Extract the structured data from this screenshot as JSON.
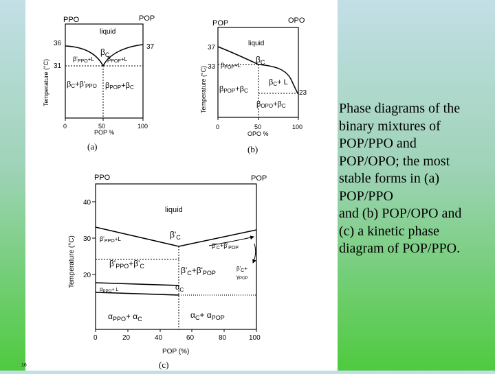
{
  "caption": {
    "lines": [
      "Phase diagrams of the",
      "binary mixtures of",
      "POP/PPO and",
      "POP/OPO; the most",
      "stable forms in (a)",
      "POP/PPO",
      "and (b) POP/OPO and",
      "(c) a kinetic phase",
      "diagram of POP/PPO."
    ]
  },
  "slide_number": "16",
  "diagrams": {
    "a": {
      "left_comp": "PPO",
      "right_comp": "POP",
      "region_liquid": "liquid",
      "t_left": "36",
      "t_right": "37",
      "t_eutectic": "31",
      "ylabel": "Temperature (°C)",
      "region_beta_c": "β",
      "region_beta_c_sub": "C",
      "region_beta_ppo_l": "β'",
      "region_beta_ppo_l_sub": "PPO",
      "region_beta_ppo_l_tail": "+L",
      "region_beta_pop_l": "β",
      "region_beta_pop_l_sub": "POP",
      "region_beta_pop_l_tail": "+L",
      "region_bc_bppo_1": "β",
      "region_bc_bppo_s1": "C",
      "region_bc_bppo_2": "+β'",
      "region_bc_bppo_s2": "PPO",
      "region_bpop_bc_1": "β",
      "region_bpop_bc_s1": "POP",
      "region_bpop_bc_2": "+β",
      "region_bpop_bc_s2": "C",
      "x_ticks": [
        "0",
        "50",
        "100"
      ],
      "xlabel": "POP %",
      "panel_label": "(a)"
    },
    "b": {
      "left_comp": "POP",
      "right_comp": "OPO",
      "region_liquid": "liquid",
      "t_left": "37",
      "t_eutectic": "33",
      "t_right": "23",
      "ylabel": "Temperature (°C)",
      "region_bpop_l": "β",
      "region_bpop_l_sub": "POP",
      "region_bpop_l_tail": "+L",
      "region_bc": "β",
      "region_bc_sub": "C",
      "region_bc_l": "β",
      "region_bc_l_sub": "C",
      "region_bc_l_tail": "+ L",
      "region_bpop_bc_1": "β",
      "region_bpop_bc_s1": "POP",
      "region_bpop_bc_2": "+β",
      "region_bpop_bc_s2": "C",
      "region_bopo_bc_1": "β",
      "region_bopo_bc_s1": "OPO",
      "region_bopo_bc_2": "+β",
      "region_bopo_bc_s2": "C",
      "x_ticks": [
        "0",
        "50",
        "100"
      ],
      "xlabel": "OPO %",
      "panel_label": "(b)"
    },
    "c": {
      "left_comp": "PPO",
      "right_comp": "POP",
      "region_liquid": "liquid",
      "y_ticks": [
        "40",
        "30",
        "20"
      ],
      "ylabel": "Temperature (°C)",
      "region_bppo_l": "β'",
      "region_bppo_l_sub": "PPO",
      "region_bppo_l_tail": "+L",
      "region_bc": "β'",
      "region_bc_sub": "C",
      "region_bc_bpop_1": "β'",
      "region_bc_bpop_s1": "C",
      "region_bc_bpop_2": "+β'",
      "region_bc_bpop_s2": "POP",
      "region_bppo_bc_1": "β'",
      "region_bppo_bc_s1": "PPO",
      "region_bppo_bc_2": "+β'",
      "region_bppo_bc_s2": "C",
      "region_bc_bpop2_1": "β'",
      "region_bc_bpop2_s1": "C",
      "region_bc_bpop2_2": "+β'",
      "region_bc_bpop2_s2": "POP",
      "region_bc_gpop_1": "β'",
      "region_bc_gpop_s1": "C",
      "region_bc_gpop_2": "+",
      "region_bc_gpop_3": "γ",
      "region_bc_gpop_s3": "POP",
      "region_appo_l": "α",
      "region_appo_l_sub": "PPO",
      "region_appo_l_tail": "+ L",
      "region_ac": "α",
      "region_ac_sub": "C",
      "region_appo_ac_1": "α",
      "region_appo_ac_s1": "PPO",
      "region_appo_ac_2": "+ α",
      "region_appo_ac_s2": "C",
      "region_ac_apop_1": "α",
      "region_ac_apop_s1": "C",
      "region_ac_apop_2": "+ α",
      "region_ac_apop_s2": "POP",
      "x_ticks": [
        "0",
        "20",
        "40",
        "60",
        "80",
        "100"
      ],
      "xlabel": "POP (%)",
      "panel_label": "(c)"
    }
  }
}
